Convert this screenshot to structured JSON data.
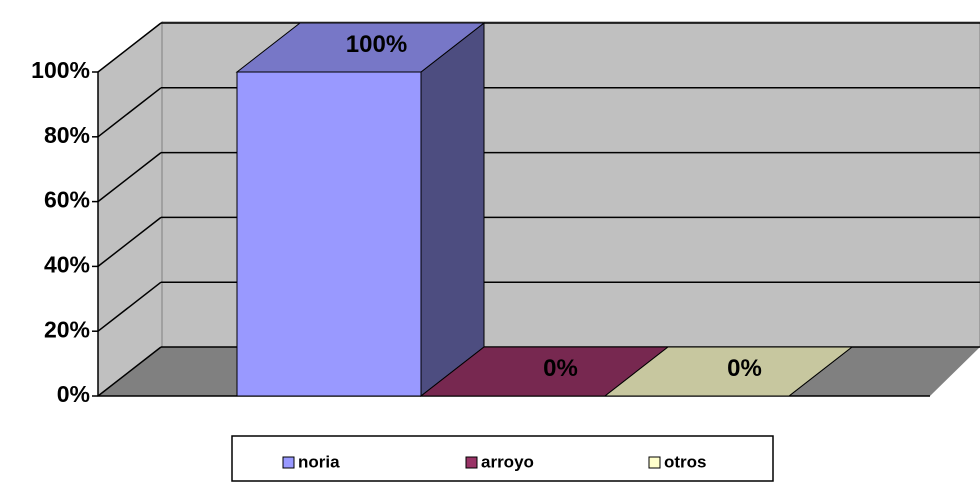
{
  "chart_data": {
    "type": "bar3d",
    "categories": [
      null
    ],
    "series": [
      {
        "name": "noria",
        "color": "#9999ff",
        "values": [
          100
        ],
        "value_labels": [
          "100%"
        ]
      },
      {
        "name": "arroyo",
        "color": "#993366",
        "values": [
          0
        ],
        "value_labels": [
          "0%"
        ]
      },
      {
        "name": "otros",
        "color": "#ffffcc",
        "values": [
          0
        ],
        "value_labels": [
          "0%"
        ]
      }
    ],
    "ylim": [
      0,
      100
    ],
    "yticks": [
      {
        "value": 0,
        "label": "0%"
      },
      {
        "value": 20,
        "label": "20%"
      },
      {
        "value": 40,
        "label": "40%"
      },
      {
        "value": 60,
        "label": "60%"
      },
      {
        "value": 80,
        "label": "80%"
      },
      {
        "value": 100,
        "label": "100%"
      }
    ],
    "grid": true,
    "legend": "bottom"
  }
}
